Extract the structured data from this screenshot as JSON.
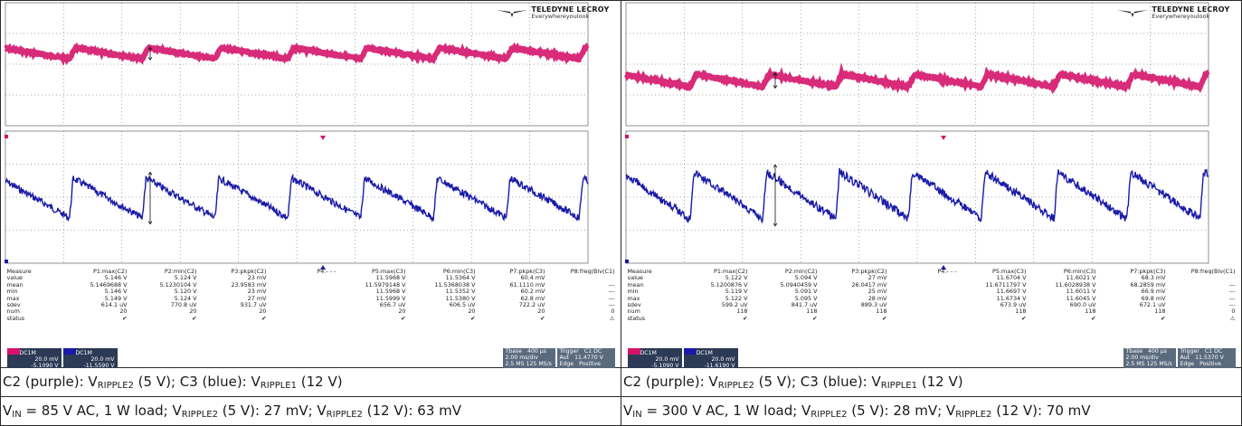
{
  "panels": [
    {
      "logo": {
        "brand": "TELEDYNE LECROY",
        "slogan": "Everywhereyoulook"
      },
      "measure": {
        "headers": [
          "Measure",
          "P1:max(C2)",
          "P2:min(C2)",
          "P3:pkpk(C2)",
          "P4:- - -",
          "P5:max(C3)",
          "P6:min(C3)",
          "P7:pkpk(C3)",
          "P8:freq(Blv(C1)"
        ],
        "rows": [
          [
            "value",
            "5.146 V",
            "5.124 V",
            "23 mV",
            "",
            "11.5968 V",
            "11.5364 V",
            "60.4 mV",
            ""
          ],
          [
            "mean",
            "5.1469688 V",
            "5.1230104 V",
            "23.9583 mV",
            "",
            "11.5979148 V",
            "11.5368038 V",
            "61.1110 mV",
            "---"
          ],
          [
            "min",
            "5.146 V",
            "5.120 V",
            "23 mV",
            "",
            "11.5968 V",
            "11.5352 V",
            "60.2 mV",
            "---"
          ],
          [
            "max",
            "5.149 V",
            "5.124 V",
            "27 mV",
            "",
            "11.5999 V",
            "11.5380 V",
            "62.8 mV",
            "---"
          ],
          [
            "sdev",
            "614.1 uV",
            "770.8 uV",
            "931.7 uV",
            "",
            "656.7 uV",
            "606.5 uV",
            "722.2 uV",
            "---"
          ],
          [
            "num",
            "20",
            "20",
            "20",
            "",
            "20",
            "20",
            "20",
            "0"
          ],
          [
            "status",
            "✔",
            "✔",
            "✔",
            "",
            "✔",
            "✔",
            "✔",
            "⚠"
          ]
        ]
      },
      "c2": {
        "label": "DC1M",
        "scale": "20.0 mV",
        "offset": "-5.1090 V"
      },
      "c3": {
        "label": "DC1M",
        "scale": "20.0 mV",
        "offset": "-11.5590 V"
      },
      "timebase": {
        "title": "Tbase",
        "delay": "400 µs",
        "div": "2.00 ms/div",
        "rate": "2.5 MS   125 MS/s"
      },
      "trigger": {
        "title": "Trigger",
        "chan": "C1 DC",
        "mode": "Aut",
        "level": "11.4770 V",
        "type": "Edge",
        "slope": "Positive"
      },
      "caption1": {
        "pre": "C2 (purple): V",
        "sub1": "RIPPLE2",
        "mid": " (5 V); C3 (blue): V",
        "sub2": "RIPPLE1",
        "post": " (12 V)"
      },
      "caption2": {
        "pre": "V",
        "sub1": "IN",
        "a": " = 85 V AC, 1 W load; V",
        "sub2": "RIPPLE2",
        "b": " (5 V): 27 mV; V",
        "sub3": "RIPPLE2",
        "c": " (12 V): 63 mV"
      }
    },
    {
      "logo": {
        "brand": "TELEDYNE LECROY",
        "slogan": "Everywhereyoulook"
      },
      "measure": {
        "headers": [
          "Measure",
          "P1:max(C2)",
          "P2:min(C2)",
          "P3:pkpk(C2)",
          "P4:- - -",
          "P5:max(C3)",
          "P6:min(C3)",
          "P7:pkpk(C3)",
          "P8:freq(Blv(C1)"
        ],
        "rows": [
          [
            "value",
            "5.122 V",
            "5.094 V",
            "27 mV",
            "",
            "11.6704 V",
            "11.6021 V",
            "68.3 mV",
            ""
          ],
          [
            "mean",
            "5.1200876 V",
            "5.0940459 V",
            "26.0417 mV",
            "",
            "11.6711797 V",
            "11.6028938 V",
            "68.2859 mV",
            "---"
          ],
          [
            "min",
            "5.119 V",
            "5.091 V",
            "25 mV",
            "",
            "11.6697 V",
            "11.6011 V",
            "66.9 mV",
            "---"
          ],
          [
            "max",
            "5.122 V",
            "5.095 V",
            "28 mV",
            "",
            "11.6734 V",
            "11.6045 V",
            "69.8 mV",
            "---"
          ],
          [
            "sdev",
            "599.2 uV",
            "841.7 uV",
            "889.3 uV",
            "",
            "673.9 uV",
            "690.0 uV",
            "672.1 uV",
            "---"
          ],
          [
            "num",
            "118",
            "118",
            "118",
            "",
            "118",
            "118",
            "118",
            "0"
          ],
          [
            "status",
            "✔",
            "✔",
            "✔",
            "",
            "✔",
            "✔",
            "✔",
            "⚠"
          ]
        ]
      },
      "c2": {
        "label": "DC1M",
        "scale": "20.0 mV",
        "offset": "-5.1090 V"
      },
      "c3": {
        "label": "DC1M",
        "scale": "20.0 mV",
        "offset": "-11.6190 V"
      },
      "timebase": {
        "title": "Tbase",
        "delay": "400 µs",
        "div": "2.00 ms/div",
        "rate": "2.5 MS   125 MS/s"
      },
      "trigger": {
        "title": "Trigger",
        "chan": "C1 DC",
        "mode": "Aut",
        "level": "11.5370 V",
        "type": "Edge",
        "slope": "Positive"
      },
      "caption1": {
        "pre": "C2 (purple): V",
        "sub1": "RIPPLE2",
        "mid": " (5 V); C3 (blue): V",
        "sub2": "RIPPLE1",
        "post": " (12 V)"
      },
      "caption2": {
        "pre": "V",
        "sub1": "IN",
        "a": " = 300 V AC, 1 W load; V",
        "sub2": "RIPPLE2",
        "b": " (5 V): 28 mV; V",
        "sub3": "RIPPLE2",
        "c": " (12 V): 70 mV"
      }
    }
  ],
  "colors": {
    "c2_trace": "#d4146a",
    "c3_trace": "#1a1aa8",
    "grid": "#555555"
  },
  "chart_data": [
    {
      "type": "line",
      "series": [
        {
          "name": "C2",
          "x_div": [
            0,
            1,
            2,
            3,
            4,
            5,
            6,
            7,
            8,
            9,
            10
          ],
          "values_mV": [
            0,
            -23,
            0,
            -23,
            0,
            -23,
            0,
            -23,
            0,
            -23,
            0
          ]
        },
        {
          "name": "C3",
          "x_div": [
            0,
            1,
            2,
            3,
            4,
            5,
            6,
            7,
            8,
            9,
            10
          ],
          "values_mV": [
            0,
            -60,
            0,
            -60,
            0,
            -60,
            0,
            -60,
            0,
            -60,
            0
          ]
        }
      ],
      "ripple_periods": 8
    },
    {
      "type": "line",
      "series": [
        {
          "name": "C2",
          "x_div": [
            0,
            1,
            2,
            3,
            4,
            5,
            6,
            7,
            8,
            9,
            10
          ],
          "values_mV": [
            0,
            -27,
            0,
            -27,
            0,
            -27,
            0,
            -27,
            0,
            -27,
            0
          ]
        },
        {
          "name": "C3",
          "x_div": [
            0,
            1,
            2,
            3,
            4,
            5,
            6,
            7,
            8,
            9,
            10
          ],
          "values_mV": [
            0,
            -68,
            0,
            -68,
            0,
            -68,
            0,
            -68,
            0,
            -68,
            0
          ]
        }
      ],
      "ripple_periods": 8
    }
  ]
}
